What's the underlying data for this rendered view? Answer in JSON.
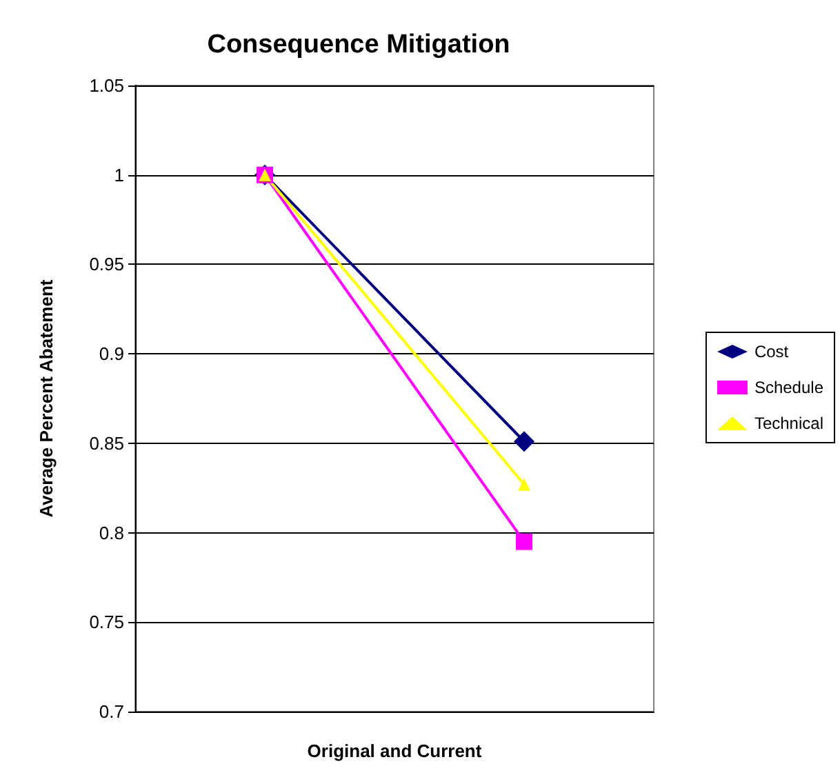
{
  "chart_data": {
    "type": "line",
    "title": "Consequence Mitigation",
    "xlabel": "Original and Current",
    "ylabel": "Average Percent Abatement",
    "categories": [
      null,
      null
    ],
    "series": [
      {
        "name": "Cost",
        "color": "#000080",
        "marker": "diamond",
        "values": [
          1,
          0.851
        ]
      },
      {
        "name": "Schedule",
        "color": "#ff00ff",
        "marker": "square",
        "values": [
          1,
          0.795
        ]
      },
      {
        "name": "Technical",
        "color": "#ffff00",
        "marker": "triangle",
        "values": [
          1,
          0.827
        ]
      }
    ],
    "ylim": [
      0.7,
      1.05
    ],
    "yticks": [
      0.7,
      0.75,
      0.8,
      0.85,
      0.9,
      0.95,
      1,
      1.05
    ],
    "grid": "y",
    "legend": "right"
  }
}
